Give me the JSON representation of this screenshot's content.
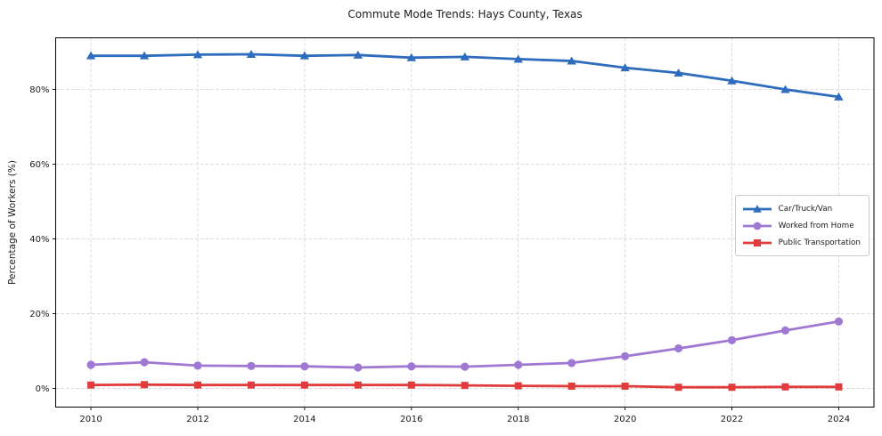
{
  "title": "Commute Mode Trends: Hays County, Texas",
  "chart_data": {
    "type": "line",
    "title": "Commute Mode Trends: Hays County, Texas",
    "xlabel": "",
    "ylabel": "Percentage of Workers (%)",
    "x": [
      2010,
      2011,
      2012,
      2013,
      2014,
      2015,
      2016,
      2017,
      2018,
      2019,
      2020,
      2021,
      2022,
      2023,
      2024
    ],
    "series": [
      {
        "name": "Car/Truck/Van",
        "color": "#2e6cbe",
        "marker": "triangle",
        "values": [
          89.0,
          89.0,
          89.3,
          89.4,
          89.0,
          89.2,
          88.5,
          88.7,
          88.1,
          87.6,
          85.8,
          84.4,
          82.3,
          80.0,
          78.0
        ]
      },
      {
        "name": "Worked from Home",
        "color": "#9f78d3",
        "marker": "circle",
        "values": [
          6.3,
          7.0,
          6.1,
          6.0,
          5.9,
          5.6,
          5.9,
          5.8,
          6.3,
          6.8,
          8.6,
          10.7,
          12.9,
          15.5,
          17.9
        ]
      },
      {
        "name": "Public Transportation",
        "color": "#e23b3b",
        "marker": "square",
        "values": [
          0.9,
          1.0,
          0.9,
          0.9,
          0.9,
          0.9,
          0.9,
          0.8,
          0.7,
          0.6,
          0.6,
          0.3,
          0.3,
          0.4,
          0.4
        ]
      }
    ],
    "xticks": [
      {
        "value": 2010,
        "label": "2010"
      },
      {
        "value": 2012,
        "label": "2012"
      },
      {
        "value": 2014,
        "label": "2014"
      },
      {
        "value": 2016,
        "label": "2016"
      },
      {
        "value": 2018,
        "label": "2018"
      },
      {
        "value": 2020,
        "label": "2020"
      },
      {
        "value": 2022,
        "label": "2022"
      },
      {
        "value": 2024,
        "label": "2024"
      }
    ],
    "yticks": [
      {
        "value": 0,
        "label": "0%"
      },
      {
        "value": 20,
        "label": "20%"
      },
      {
        "value": 40,
        "label": "40%"
      },
      {
        "value": 60,
        "label": "60%"
      },
      {
        "value": 80,
        "label": "80%"
      }
    ],
    "xlim": [
      2009.34,
      2024.66
    ],
    "ylim": [
      -5.0,
      93.8
    ],
    "grid": true,
    "legend_position": "center right"
  }
}
